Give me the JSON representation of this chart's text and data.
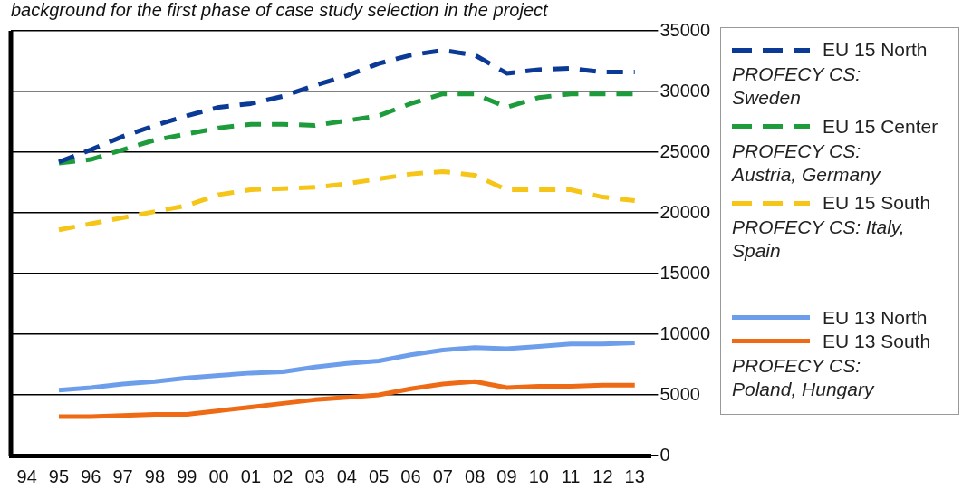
{
  "chart_data": {
    "type": "line",
    "title": "background for the first phase of case study selection in the project",
    "categories": [
      "94",
      "95",
      "96",
      "97",
      "98",
      "99",
      "00",
      "01",
      "02",
      "03",
      "04",
      "05",
      "06",
      "07",
      "08",
      "09",
      "10",
      "11",
      "12",
      "13"
    ],
    "series": [
      {
        "name": "EU 15 North",
        "color": "#0b3a96",
        "line_style": "dashed",
        "values": [
          null,
          24200,
          25200,
          26300,
          27200,
          28000,
          28700,
          29000,
          29600,
          30500,
          31300,
          32300,
          33000,
          33400,
          33000,
          31500,
          31800,
          31900,
          31600,
          31600
        ]
      },
      {
        "name": "EU 15 Center",
        "color": "#1e9c3c",
        "line_style": "dashed",
        "values": [
          null,
          24100,
          24400,
          25200,
          26000,
          26500,
          27000,
          27300,
          27300,
          27200,
          27600,
          28000,
          29000,
          29800,
          29800,
          28700,
          29500,
          29800,
          29800,
          29800
        ]
      },
      {
        "name": "EU 15 South",
        "color": "#f5c518",
        "line_style": "dashed",
        "values": [
          null,
          18600,
          19100,
          19600,
          20100,
          20600,
          21500,
          21900,
          22000,
          22100,
          22400,
          22800,
          23200,
          23400,
          23100,
          21900,
          21900,
          21900,
          21300,
          21000
        ]
      },
      {
        "name": "EU 13 North",
        "color": "#6d9eeb",
        "line_style": "solid",
        "values": [
          null,
          5400,
          5600,
          5900,
          6100,
          6400,
          6600,
          6800,
          6900,
          7300,
          7600,
          7800,
          8300,
          8700,
          8900,
          8800,
          9000,
          9200,
          9200,
          9300
        ]
      },
      {
        "name": "EU 13 South",
        "color": "#ee6a14",
        "line_style": "solid",
        "values": [
          null,
          3200,
          3200,
          3300,
          3400,
          3400,
          3700,
          4000,
          4300,
          4600,
          4800,
          5000,
          5500,
          5900,
          6100,
          5600,
          5700,
          5700,
          5800,
          5800
        ]
      }
    ],
    "annotations": [
      "PROFECY CS: Sweden",
      "PROFECY CS: Austria, Germany",
      "PROFECY CS: Italy, Spain",
      "PROFECY CS: Poland, Hungary"
    ],
    "ylim": [
      0,
      35000
    ],
    "yticks": [
      0,
      5000,
      10000,
      15000,
      20000,
      25000,
      30000,
      35000
    ],
    "grid": "y",
    "legend": "right",
    "marker": "none"
  }
}
